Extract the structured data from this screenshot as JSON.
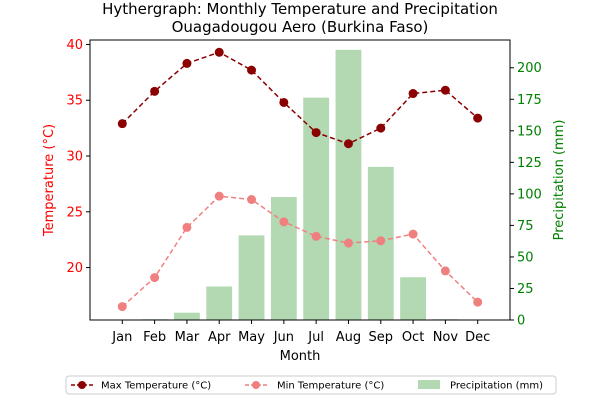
{
  "chart_data": {
    "type": "line+bar",
    "title": "Hythergraph: Monthly Temperature and Precipitation",
    "subtitle": "Ouagadougou Aero (Burkina Faso)",
    "xlabel": "Month",
    "ylabel_left": "Temperature (°C)",
    "ylabel_right": "Precipitation (mm)",
    "categories": [
      "Jan",
      "Feb",
      "Mar",
      "Apr",
      "May",
      "Jun",
      "Jul",
      "Aug",
      "Sep",
      "Oct",
      "Nov",
      "Dec"
    ],
    "ylim_left": [
      15.3,
      40.4
    ],
    "ylim_right": [
      0,
      222
    ],
    "yticks_left": [
      20,
      25,
      30,
      35,
      40
    ],
    "yticks_right": [
      0,
      25,
      50,
      75,
      100,
      125,
      150,
      175,
      200
    ],
    "grid": false,
    "legend_position": "bottom-center",
    "series": [
      {
        "name": "Max Temperature (°C)",
        "axis": "left",
        "kind": "line",
        "color": "#8b0000",
        "values": [
          32.9,
          35.8,
          38.3,
          39.3,
          37.7,
          34.8,
          32.1,
          31.1,
          32.5,
          35.6,
          35.9,
          33.4
        ]
      },
      {
        "name": "Min Temperature (°C)",
        "axis": "left",
        "kind": "line",
        "color": "#f08080",
        "values": [
          16.5,
          19.1,
          23.6,
          26.4,
          26.1,
          24.1,
          22.8,
          22.2,
          22.4,
          23.0,
          19.7,
          16.9
        ]
      },
      {
        "name": "Precipitation (mm)",
        "axis": "right",
        "kind": "bar",
        "color": "#b2d9b2",
        "values": [
          0.0,
          0.6,
          5.8,
          26.6,
          67.1,
          97.5,
          176.3,
          214.2,
          121.4,
          33.9,
          0.6,
          0.1
        ]
      }
    ]
  },
  "colors": {
    "left_axis": "#ff0000",
    "right_axis": "#008000",
    "text": "#000000"
  }
}
